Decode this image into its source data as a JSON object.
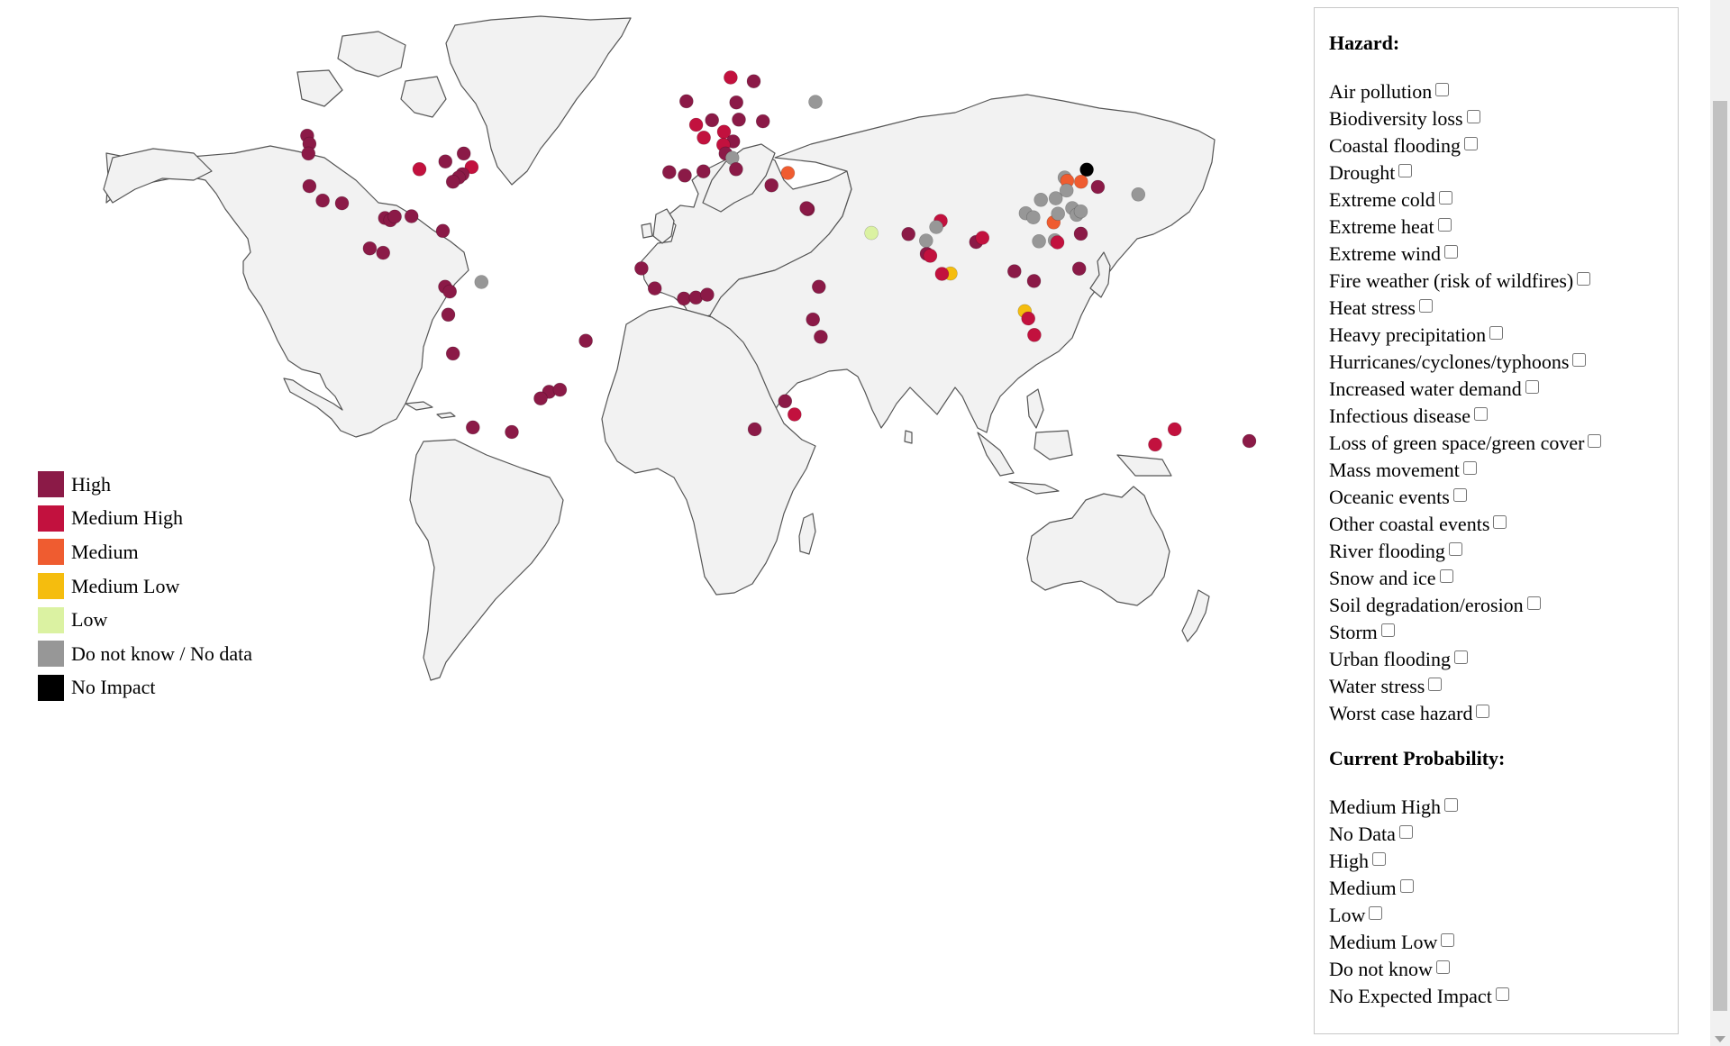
{
  "legend": [
    {
      "label": "High",
      "color": "#8b1a47"
    },
    {
      "label": "Medium High",
      "color": "#c2113e"
    },
    {
      "label": "Medium",
      "color": "#ef5c30"
    },
    {
      "label": "Medium Low",
      "color": "#f5bd0e"
    },
    {
      "label": "Low",
      "color": "#dbf2a2"
    },
    {
      "label": "Do not know / No data",
      "color": "#979797"
    },
    {
      "label": "No Impact",
      "color": "#000000"
    }
  ],
  "map_points": [
    {
      "lon": -123.1,
      "lat": 49.3,
      "level": "High"
    },
    {
      "lon": -122.4,
      "lat": 47.6,
      "level": "High"
    },
    {
      "lon": -122.7,
      "lat": 45.5,
      "level": "High"
    },
    {
      "lon": -122.4,
      "lat": 37.8,
      "level": "High"
    },
    {
      "lon": -118.2,
      "lat": 34.1,
      "level": "High"
    },
    {
      "lon": -112.1,
      "lat": 33.4,
      "level": "High"
    },
    {
      "lon": -98.5,
      "lat": 29.4,
      "level": "High"
    },
    {
      "lon": -96.8,
      "lat": 28.8,
      "level": "High"
    },
    {
      "lon": -95.4,
      "lat": 29.8,
      "level": "High"
    },
    {
      "lon": -90.1,
      "lat": 29.9,
      "level": "High"
    },
    {
      "lon": -80.2,
      "lat": 25.8,
      "level": "High"
    },
    {
      "lon": -87.6,
      "lat": 41.9,
      "level": "Medium High"
    },
    {
      "lon": -79.4,
      "lat": 43.7,
      "level": "High"
    },
    {
      "lon": -73.6,
      "lat": 45.5,
      "level": "High"
    },
    {
      "lon": -71.1,
      "lat": 42.4,
      "level": "Medium High"
    },
    {
      "lon": -74.0,
      "lat": 40.7,
      "level": "High"
    },
    {
      "lon": -75.2,
      "lat": 39.9,
      "level": "High"
    },
    {
      "lon": -77.0,
      "lat": 38.9,
      "level": "High"
    },
    {
      "lon": -103.3,
      "lat": 20.7,
      "level": "High"
    },
    {
      "lon": -99.1,
      "lat": 19.4,
      "level": "High"
    },
    {
      "lon": -68.0,
      "lat": 10.5,
      "level": "Do not know / No data"
    },
    {
      "lon": -79.5,
      "lat": 9.0,
      "level": "High"
    },
    {
      "lon": -78.0,
      "lat": 7.5,
      "level": "High"
    },
    {
      "lon": -78.5,
      "lat": 0.2,
      "level": "High"
    },
    {
      "lon": -77.0,
      "lat": -12.0,
      "level": "High"
    },
    {
      "lon": -35.0,
      "lat": -8.0,
      "level": "High"
    },
    {
      "lon": -46.6,
      "lat": -23.5,
      "level": "High"
    },
    {
      "lon": -43.2,
      "lat": -22.9,
      "level": "High"
    },
    {
      "lon": -49.3,
      "lat": -25.4,
      "level": "High"
    },
    {
      "lon": -70.7,
      "lat": -33.4,
      "level": "High"
    },
    {
      "lon": -58.4,
      "lat": -34.6,
      "level": "High"
    },
    {
      "lon": -0.1,
      "lat": 51.5,
      "level": "Medium High"
    },
    {
      "lon": -3.2,
      "lat": 55.9,
      "level": "High"
    },
    {
      "lon": 2.3,
      "lat": 48.9,
      "level": "Medium High"
    },
    {
      "lon": 4.9,
      "lat": 52.4,
      "level": "High"
    },
    {
      "lon": 10.8,
      "lat": 59.9,
      "level": "Medium High"
    },
    {
      "lon": 18.1,
      "lat": 59.3,
      "level": "High"
    },
    {
      "lon": 12.6,
      "lat": 55.7,
      "level": "High"
    },
    {
      "lon": 13.4,
      "lat": 52.5,
      "level": "High"
    },
    {
      "lon": 21.0,
      "lat": 52.2,
      "level": "High"
    },
    {
      "lon": 8.7,
      "lat": 50.1,
      "level": "Medium High"
    },
    {
      "lon": 11.6,
      "lat": 48.1,
      "level": "High"
    },
    {
      "lon": 8.5,
      "lat": 47.4,
      "level": "Medium High"
    },
    {
      "lon": 9.2,
      "lat": 45.5,
      "level": "High"
    },
    {
      "lon": 11.3,
      "lat": 44.5,
      "level": "Do not know / No data"
    },
    {
      "lon": 12.5,
      "lat": 41.9,
      "level": "High"
    },
    {
      "lon": 2.2,
      "lat": 41.4,
      "level": "High"
    },
    {
      "lon": -3.7,
      "lat": 40.4,
      "level": "High"
    },
    {
      "lon": -8.6,
      "lat": 41.2,
      "level": "High"
    },
    {
      "lon": 23.7,
      "lat": 38.0,
      "level": "High"
    },
    {
      "lon": 28.9,
      "lat": 41.0,
      "level": "Medium"
    },
    {
      "lon": 37.6,
      "lat": 55.8,
      "level": "Do not know / No data"
    },
    {
      "lon": 35.2,
      "lat": 31.8,
      "level": "High"
    },
    {
      "lon": 34.8,
      "lat": 32.1,
      "level": "High"
    },
    {
      "lon": 55.3,
      "lat": 25.2,
      "level": "Low"
    },
    {
      "lon": 67.0,
      "lat": 24.9,
      "level": "High"
    },
    {
      "lon": 72.8,
      "lat": 19.1,
      "level": "High"
    },
    {
      "lon": 73.9,
      "lat": 18.5,
      "level": "Medium High"
    },
    {
      "lon": 77.2,
      "lat": 28.6,
      "level": "Medium High"
    },
    {
      "lon": 75.8,
      "lat": 26.9,
      "level": "Do not know / No data"
    },
    {
      "lon": 72.6,
      "lat": 23.0,
      "level": "Do not know / No data"
    },
    {
      "lon": 80.3,
      "lat": 13.1,
      "level": "Medium Low"
    },
    {
      "lon": 77.6,
      "lat": 13.0,
      "level": "Medium High"
    },
    {
      "lon": 88.4,
      "lat": 22.6,
      "level": "High"
    },
    {
      "lon": 90.4,
      "lat": 23.8,
      "level": "Medium High"
    },
    {
      "lon": 100.5,
      "lat": 13.8,
      "level": "High"
    },
    {
      "lon": 106.7,
      "lat": 10.8,
      "level": "High"
    },
    {
      "lon": 103.8,
      "lat": 1.3,
      "level": "Medium Low"
    },
    {
      "lon": 104.9,
      "lat": -1.0,
      "level": "Medium High"
    },
    {
      "lon": 106.8,
      "lat": -6.2,
      "level": "Medium High"
    },
    {
      "lon": 121.0,
      "lat": 14.6,
      "level": "High"
    },
    {
      "lon": 104.1,
      "lat": 30.7,
      "level": "Do not know / No data"
    },
    {
      "lon": 106.5,
      "lat": 29.6,
      "level": "Do not know / No data"
    },
    {
      "lon": 108.9,
      "lat": 34.3,
      "level": "Do not know / No data"
    },
    {
      "lon": 108.3,
      "lat": 22.8,
      "level": "Do not know / No data"
    },
    {
      "lon": 112.9,
      "lat": 28.2,
      "level": "Medium"
    },
    {
      "lon": 113.3,
      "lat": 23.1,
      "level": "Do not know / No data"
    },
    {
      "lon": 114.1,
      "lat": 22.5,
      "level": "Medium High"
    },
    {
      "lon": 114.3,
      "lat": 30.6,
      "level": "Do not know / No data"
    },
    {
      "lon": 113.6,
      "lat": 34.7,
      "level": "Do not know / No data"
    },
    {
      "lon": 116.4,
      "lat": 39.9,
      "level": "Do not know / No data"
    },
    {
      "lon": 117.2,
      "lat": 39.1,
      "level": "Medium"
    },
    {
      "lon": 117.0,
      "lat": 36.7,
      "level": "Do not know / No data"
    },
    {
      "lon": 118.8,
      "lat": 32.1,
      "level": "Do not know / No data"
    },
    {
      "lon": 120.2,
      "lat": 30.3,
      "level": "Do not know / No data"
    },
    {
      "lon": 121.5,
      "lat": 31.2,
      "level": "Do not know / No data"
    },
    {
      "lon": 123.4,
      "lat": 41.8,
      "level": "No Impact"
    },
    {
      "lon": 121.6,
      "lat": 38.9,
      "level": "Medium"
    },
    {
      "lon": 126.9,
      "lat": 37.6,
      "level": "High"
    },
    {
      "lon": 139.7,
      "lat": 35.7,
      "level": "Do not know / No data"
    },
    {
      "lon": 121.5,
      "lat": 25.0,
      "level": "High"
    },
    {
      "lon": -17.4,
      "lat": 14.7,
      "level": "High"
    },
    {
      "lon": -13.2,
      "lat": 8.5,
      "level": "High"
    },
    {
      "lon": -4.0,
      "lat": 5.3,
      "level": "High"
    },
    {
      "lon": -0.2,
      "lat": 5.6,
      "level": "High"
    },
    {
      "lon": 3.4,
      "lat": 6.5,
      "level": "High"
    },
    {
      "lon": 36.8,
      "lat": -1.3,
      "level": "High"
    },
    {
      "lon": 39.3,
      "lat": -6.8,
      "level": "High"
    },
    {
      "lon": 38.7,
      "lat": 9.0,
      "level": "High"
    },
    {
      "lon": 18.4,
      "lat": -33.9,
      "level": "High"
    },
    {
      "lon": 31.0,
      "lat": -29.9,
      "level": "Medium High"
    },
    {
      "lon": 28.0,
      "lat": -26.2,
      "level": "High"
    },
    {
      "lon": 151.2,
      "lat": -33.9,
      "level": "Medium High"
    },
    {
      "lon": 145.0,
      "lat": -37.8,
      "level": "Medium High"
    },
    {
      "lon": 174.8,
      "lat": -36.9,
      "level": "High"
    }
  ],
  "panel": {
    "hazard_title": "Hazard:",
    "hazards": [
      "Air pollution",
      "Biodiversity loss",
      "Coastal flooding",
      "Drought",
      "Extreme cold",
      "Extreme heat",
      "Extreme wind",
      "Fire weather (risk of wildfires)",
      "Heat stress",
      "Heavy precipitation",
      "Hurricanes/cyclones/typhoons",
      "Increased water demand",
      "Infectious disease",
      "Loss of green space/green cover",
      "Mass movement",
      "Oceanic events",
      "Other coastal events",
      "River flooding",
      "Snow and ice",
      "Soil degradation/erosion",
      "Storm",
      "Urban flooding",
      "Water stress",
      "Worst case hazard"
    ],
    "probability_title": "Current Probability:",
    "probabilities": [
      "Medium High",
      "No Data",
      "High",
      "Medium",
      "Low",
      "Medium Low",
      "Do not know",
      "No Expected Impact"
    ]
  }
}
